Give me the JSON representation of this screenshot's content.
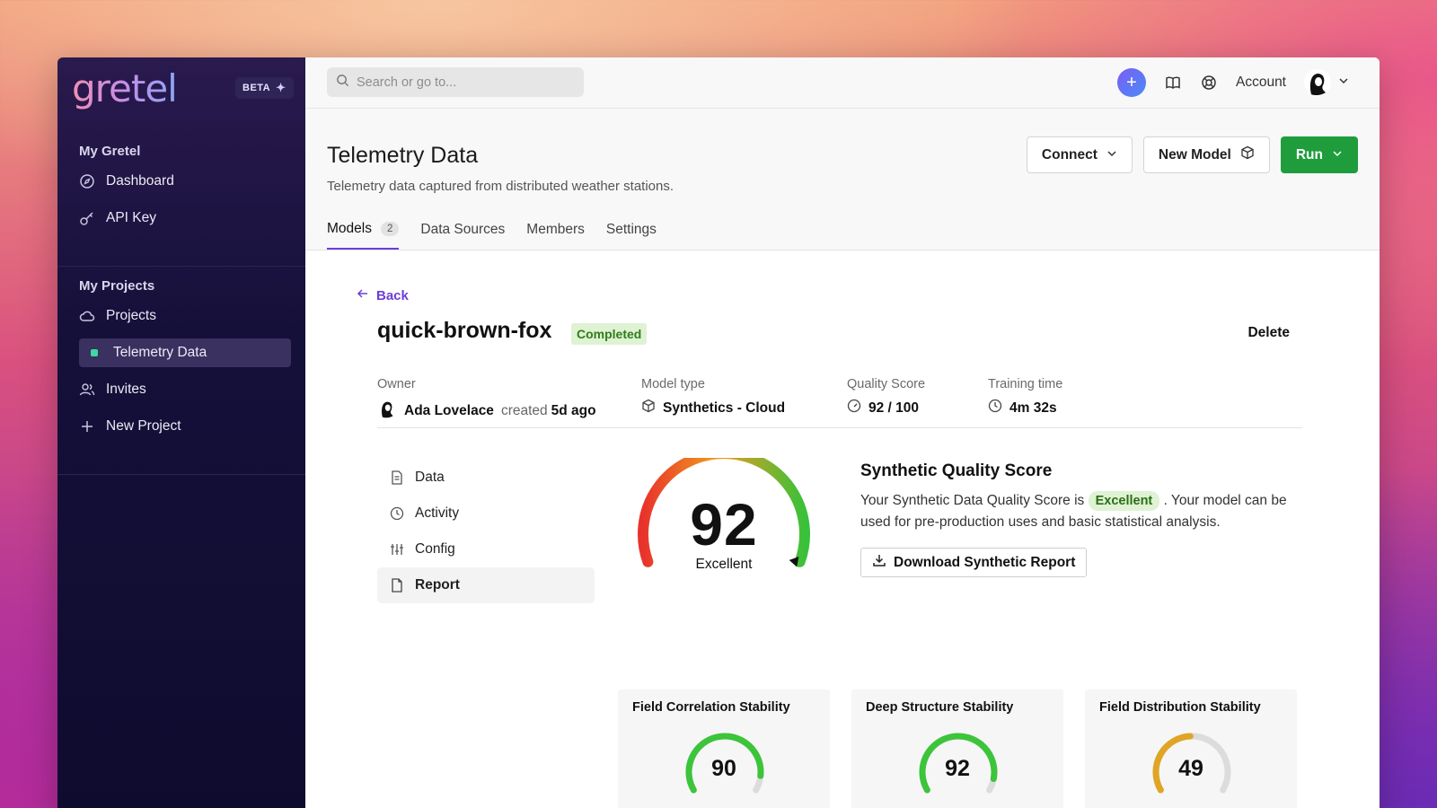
{
  "brand": {
    "logo": "gretel",
    "beta_label": "BETA"
  },
  "sidebar": {
    "section1": {
      "heading": "My Gretel",
      "items": [
        {
          "label": "Dashboard",
          "icon": "compass-icon"
        },
        {
          "label": "API Key",
          "icon": "key-icon"
        }
      ]
    },
    "section2": {
      "heading": "My Projects",
      "items": [
        {
          "label": "Projects",
          "icon": "cloud-icon"
        },
        {
          "label": "Telemetry Data",
          "icon": "dot-icon",
          "active": true
        },
        {
          "label": "Invites",
          "icon": "users-icon"
        },
        {
          "label": "New Project",
          "icon": "plus-icon"
        }
      ]
    }
  },
  "topbar": {
    "search_placeholder": "Search or go to...",
    "account_label": "Account"
  },
  "project": {
    "title": "Telemetry Data",
    "subtitle": "Telemetry data captured from distributed weather stations.",
    "buttons": {
      "connect": "Connect",
      "new_model": "New Model",
      "run": "Run"
    },
    "tabs": [
      {
        "label": "Models",
        "count": "2",
        "active": true
      },
      {
        "label": "Data Sources"
      },
      {
        "label": "Members"
      },
      {
        "label": "Settings"
      }
    ]
  },
  "model": {
    "back_label": "Back",
    "name": "quick-brown-fox",
    "status": "Completed",
    "delete_label": "Delete",
    "meta": {
      "owner_label": "Owner",
      "owner_name": "Ada Lovelace",
      "created_word": "created",
      "created_ago": "5d ago",
      "type_label": "Model type",
      "type_value": "Synthetics - Cloud",
      "quality_label": "Quality Score",
      "quality_value": "92 / 100",
      "training_label": "Training time",
      "training_value": "4m 32s"
    },
    "subnav": [
      {
        "label": "Data",
        "icon": "document-icon"
      },
      {
        "label": "Activity",
        "icon": "clock-icon"
      },
      {
        "label": "Config",
        "icon": "sliders-icon"
      },
      {
        "label": "Report",
        "icon": "file-icon",
        "active": true
      }
    ]
  },
  "report": {
    "score": "92",
    "score_value": 92,
    "score_label": "Excellent",
    "title": "Synthetic Quality Score",
    "text_before": "Your Synthetic Data Quality Score is",
    "badge": "Excellent",
    "text_after": ". Your model can be used for pre-production uses and basic statistical analysis.",
    "download_label": "Download Synthetic Report",
    "cards": [
      {
        "title": "Field Correlation Stability",
        "value": "90",
        "score": 90,
        "color": "#3cc43a"
      },
      {
        "title": "Deep Structure Stability",
        "value": "92",
        "score": 92,
        "color": "#3cc43a"
      },
      {
        "title": "Field Distribution Stability",
        "value": "49",
        "score": 49,
        "color": "#e0a524"
      }
    ]
  }
}
